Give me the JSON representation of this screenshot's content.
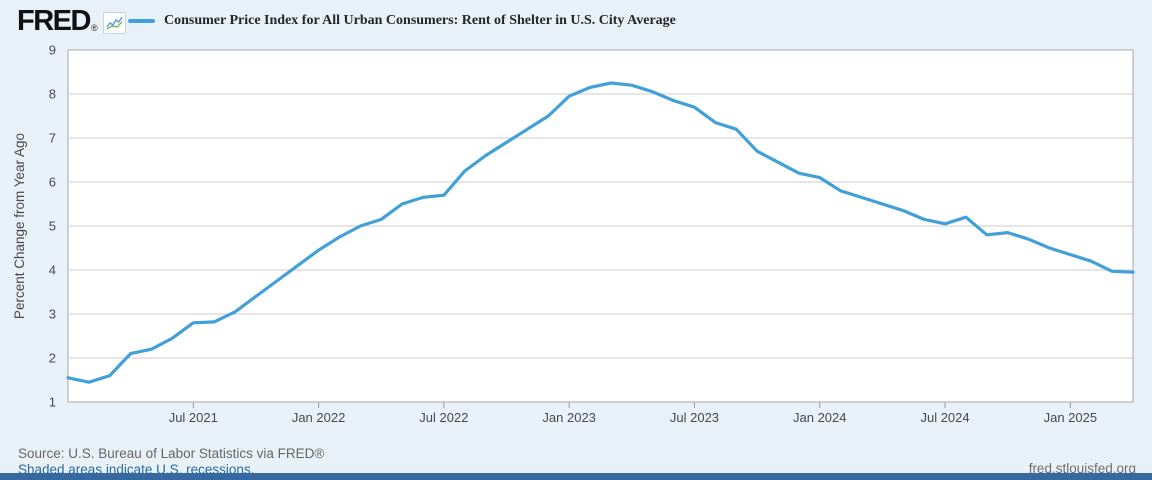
{
  "header": {
    "logo_text": "FRED",
    "registered_mark": "®",
    "legend_label": "Consumer Price Index for All Urban Consumers: Rent of Shelter in U.S. City Average"
  },
  "footer": {
    "source_line": "Source: U.S. Bureau of Labor Statistics via FRED®",
    "recession_note": "Shaded areas indicate U.S. recessions.",
    "site_url": "fred.stlouisfed.org"
  },
  "colors": {
    "page_bg": "#e8f1f8",
    "plot_bg": "#ffffff",
    "grid": "#cccccc",
    "plot_border": "#a8a8a8",
    "tick": "#999999",
    "axis_text": "#47494e",
    "line": "#41a0d8",
    "title_text": "#26272b",
    "source_text": "#666666",
    "link_text": "#2a6a9e",
    "bottom_bar": "#35699f"
  },
  "chart_data": {
    "type": "line",
    "title": "Consumer Price Index for All Urban Consumers: Rent of Shelter in U.S. City Average",
    "xlabel": "",
    "ylabel": "Percent Change from Year Ago",
    "ylim": [
      1,
      9
    ],
    "yticks": [
      1,
      2,
      3,
      4,
      5,
      6,
      7,
      8,
      9
    ],
    "grid": "horizontal",
    "legend_position": "top",
    "frequency": "monthly",
    "x_start": "Jan 2021",
    "x_end": "Apr 2025",
    "x_tick_labels": [
      "Jul 2021",
      "Jan 2022",
      "Jul 2022",
      "Jan 2023",
      "Jul 2023",
      "Jan 2024",
      "Jul 2024",
      "Jan 2025"
    ],
    "x_tick_months": [
      6,
      12,
      18,
      24,
      30,
      36,
      42,
      48
    ],
    "series": [
      {
        "name": "Consumer Price Index for All Urban Consumers: Rent of Shelter in U.S. City Average",
        "color": "#41a0d8",
        "values": [
          1.55,
          1.45,
          1.6,
          2.1,
          2.2,
          2.45,
          2.8,
          2.82,
          3.05,
          3.4,
          3.75,
          4.1,
          4.45,
          4.75,
          5.0,
          5.15,
          5.5,
          5.65,
          5.7,
          6.25,
          6.6,
          6.9,
          7.2,
          7.5,
          7.95,
          8.15,
          8.25,
          8.2,
          8.05,
          7.85,
          7.7,
          7.35,
          7.2,
          6.7,
          6.45,
          6.2,
          6.1,
          5.8,
          5.65,
          5.5,
          5.35,
          5.15,
          5.05,
          5.2,
          4.8,
          4.85,
          4.7,
          4.5,
          4.35,
          4.2,
          3.97,
          3.95
        ]
      }
    ]
  }
}
